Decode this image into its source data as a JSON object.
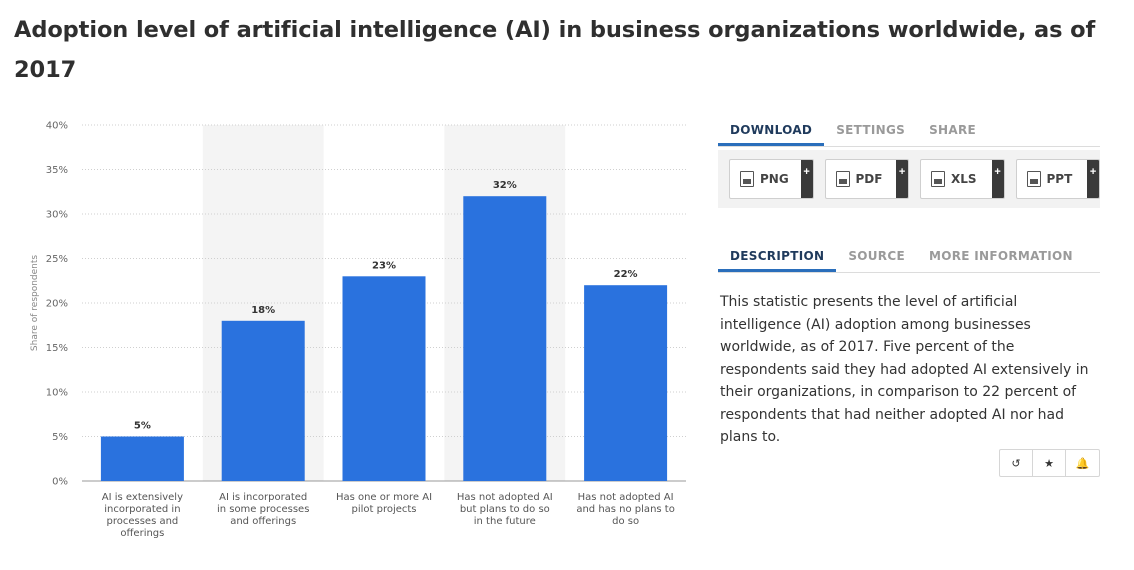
{
  "page": {
    "title": "Adoption level of artificial intelligence (AI) in business organizations worldwide, as of 2017"
  },
  "chart_data": {
    "type": "bar",
    "title": "",
    "xlabel": "",
    "ylabel": "Share of respondents",
    "ylim": [
      0,
      40
    ],
    "yticks": [
      0,
      5,
      10,
      15,
      20,
      25,
      30,
      35,
      40
    ],
    "ytick_labels": [
      "0%",
      "5%",
      "10%",
      "15%",
      "20%",
      "25%",
      "30%",
      "35%",
      "40%"
    ],
    "grid": true,
    "categories": [
      [
        "AI is extensively",
        "incorporated in",
        "processes and",
        "offerings"
      ],
      [
        "AI is incorporated",
        "in some processes",
        "and offerings"
      ],
      [
        "Has one or more AI",
        "pilot projects"
      ],
      [
        "Has not adopted AI",
        "but plans to do so",
        "in the future"
      ],
      [
        "Has not adopted AI",
        "and has no plans to",
        "do so"
      ]
    ],
    "values": [
      5,
      18,
      23,
      32,
      22
    ],
    "value_labels": [
      "5%",
      "18%",
      "23%",
      "32%",
      "22%"
    ],
    "bar_color": "#2a72de",
    "band_color": "#f4f4f4"
  },
  "download_tabs": {
    "download": "DOWNLOAD",
    "settings": "SETTINGS",
    "share": "SHARE"
  },
  "downloads": {
    "png": "PNG",
    "pdf": "PDF",
    "xls": "XLS",
    "ppt": "PPT",
    "plus": "+"
  },
  "info_tabs": {
    "description": "DESCRIPTION",
    "source": "SOURCE",
    "more_information": "MORE INFORMATION"
  },
  "description": "This statistic presents the level of artificial intelligence (AI) adoption among businesses worldwide, as of 2017. Five percent of the respondents said they had adopted AI extensively in their organizations, in comparison to 22 percent of respondents that had neither adopted AI nor had plans to.",
  "actions": {
    "history": "↺",
    "favorite": "★",
    "alert": "🔔"
  }
}
